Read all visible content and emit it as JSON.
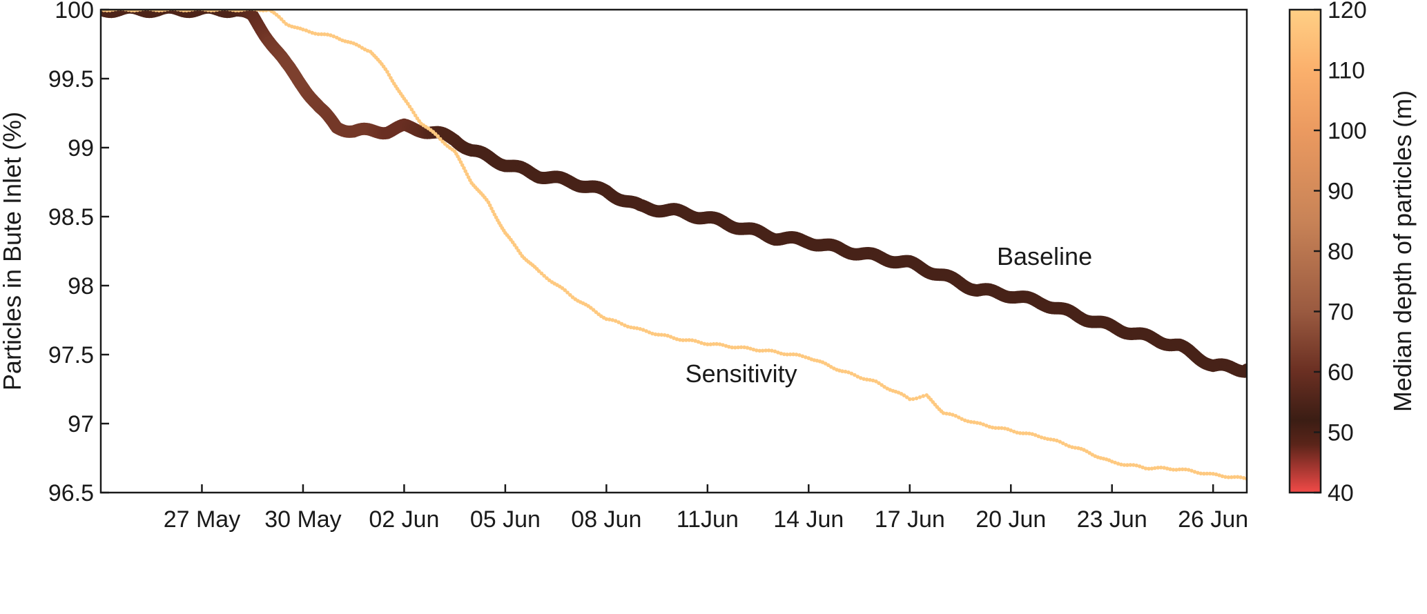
{
  "chart_data": {
    "type": "scatter",
    "ylabel": "Particles in Bute Inlet (%)",
    "colorbar_label": "Median depth of particles (m)",
    "ylim": [
      96.5,
      100
    ],
    "yticks": [
      "100",
      "99.5",
      "99",
      "98.5",
      "98",
      "97.5",
      "97",
      "96.5"
    ],
    "ytick_values": [
      100,
      99.5,
      99,
      98.5,
      98,
      97.5,
      97,
      96.5
    ],
    "xlim": [
      "2023-05-24",
      "2023-06-27"
    ],
    "xticks": [
      {
        "date": "2023-05-27",
        "label": "27 May"
      },
      {
        "date": "2023-05-30",
        "label": "30 May"
      },
      {
        "date": "2023-06-02",
        "label": "02 Jun"
      },
      {
        "date": "2023-06-05",
        "label": "05 Jun"
      },
      {
        "date": "2023-06-08",
        "label": "08 Jun"
      },
      {
        "date": "2023-06-11",
        "label": "11Jun"
      },
      {
        "date": "2023-06-14",
        "label": "14 Jun"
      },
      {
        "date": "2023-06-17",
        "label": "17 Jun"
      },
      {
        "date": "2023-06-20",
        "label": "20 Jun"
      },
      {
        "date": "2023-06-23",
        "label": "23 Jun"
      },
      {
        "date": "2023-06-26",
        "label": "26 Jun"
      }
    ],
    "colorbar": {
      "range": [
        40,
        120
      ],
      "ticks": [
        "120",
        "110",
        "100",
        "90",
        "80",
        "70",
        "60",
        "50",
        "40"
      ],
      "tick_values": [
        120,
        110,
        100,
        90,
        80,
        70,
        60,
        50,
        40
      ],
      "colors": [
        "#f24a48",
        "#5a2419",
        "#3b1d14",
        "#6a2f22",
        "#9a5a40",
        "#c88357",
        "#eb9a60",
        "#fbb06c",
        "#ffcf85"
      ],
      "color_stops": [
        40,
        48,
        52,
        60,
        70,
        85,
        100,
        110,
        120
      ]
    },
    "series": [
      {
        "name": "Baseline",
        "marker_color": "#4a2318",
        "points": [
          {
            "x": "2023-05-24",
            "y": 100.0,
            "depth": 55
          },
          {
            "x": "2023-05-25",
            "y": 100.0,
            "depth": 55
          },
          {
            "x": "2023-05-26",
            "y": 100.0,
            "depth": 55
          },
          {
            "x": "2023-05-27",
            "y": 100.0,
            "depth": 55
          },
          {
            "x": "2023-05-28",
            "y": 100.0,
            "depth": 55
          },
          {
            "x": "2023-05-28T12:00",
            "y": 99.95,
            "depth": 58
          },
          {
            "x": "2023-05-29",
            "y": 99.78,
            "depth": 62
          },
          {
            "x": "2023-05-29T12:00",
            "y": 99.6,
            "depth": 64
          },
          {
            "x": "2023-05-30",
            "y": 99.45,
            "depth": 64
          },
          {
            "x": "2023-05-30T12:00",
            "y": 99.28,
            "depth": 63
          },
          {
            "x": "2023-05-31",
            "y": 99.15,
            "depth": 62
          },
          {
            "x": "2023-05-31T12:00",
            "y": 99.12,
            "depth": 62
          },
          {
            "x": "2023-06-01",
            "y": 99.12,
            "depth": 62
          },
          {
            "x": "2023-06-01T12:00",
            "y": 99.12,
            "depth": 60
          },
          {
            "x": "2023-06-02",
            "y": 99.15,
            "depth": 60
          },
          {
            "x": "2023-06-02T12:00",
            "y": 99.13,
            "depth": 58
          },
          {
            "x": "2023-06-03",
            "y": 99.1,
            "depth": 55
          },
          {
            "x": "2023-06-03T12:00",
            "y": 99.06,
            "depth": 55
          },
          {
            "x": "2023-06-04",
            "y": 98.98,
            "depth": 54
          },
          {
            "x": "2023-06-05",
            "y": 98.88,
            "depth": 54
          },
          {
            "x": "2023-06-06",
            "y": 98.8,
            "depth": 54
          },
          {
            "x": "2023-06-07",
            "y": 98.75,
            "depth": 54
          },
          {
            "x": "2023-06-08",
            "y": 98.68,
            "depth": 54
          },
          {
            "x": "2023-06-09",
            "y": 98.57,
            "depth": 54
          },
          {
            "x": "2023-06-10",
            "y": 98.54,
            "depth": 54
          },
          {
            "x": "2023-06-11",
            "y": 98.49,
            "depth": 54
          },
          {
            "x": "2023-06-12",
            "y": 98.42,
            "depth": 54
          },
          {
            "x": "2023-06-13",
            "y": 98.35,
            "depth": 54
          },
          {
            "x": "2023-06-14",
            "y": 98.32,
            "depth": 54
          },
          {
            "x": "2023-06-15",
            "y": 98.26,
            "depth": 54
          },
          {
            "x": "2023-06-16",
            "y": 98.21,
            "depth": 54
          },
          {
            "x": "2023-06-17",
            "y": 98.16,
            "depth": 54
          },
          {
            "x": "2023-06-18",
            "y": 98.07,
            "depth": 54
          },
          {
            "x": "2023-06-19",
            "y": 97.97,
            "depth": 54
          },
          {
            "x": "2023-06-20",
            "y": 97.93,
            "depth": 54
          },
          {
            "x": "2023-06-21",
            "y": 97.87,
            "depth": 54
          },
          {
            "x": "2023-06-22",
            "y": 97.78,
            "depth": 54
          },
          {
            "x": "2023-06-23",
            "y": 97.7,
            "depth": 54
          },
          {
            "x": "2023-06-24",
            "y": 97.63,
            "depth": 54
          },
          {
            "x": "2023-06-25",
            "y": 97.56,
            "depth": 54
          },
          {
            "x": "2023-06-26",
            "y": 97.42,
            "depth": 54
          },
          {
            "x": "2023-06-27",
            "y": 97.39,
            "depth": 54
          }
        ]
      },
      {
        "name": "Sensitivity",
        "marker_color": "#fbc57f",
        "points": [
          {
            "x": "2023-05-24",
            "y": 100.0,
            "depth": 118
          },
          {
            "x": "2023-05-27",
            "y": 100.0,
            "depth": 118
          },
          {
            "x": "2023-05-29",
            "y": 100.0,
            "depth": 118
          },
          {
            "x": "2023-05-29T12:00",
            "y": 99.9,
            "depth": 118
          },
          {
            "x": "2023-05-30",
            "y": 99.85,
            "depth": 118
          },
          {
            "x": "2023-05-31",
            "y": 99.8,
            "depth": 118
          },
          {
            "x": "2023-06-01",
            "y": 99.7,
            "depth": 118
          },
          {
            "x": "2023-06-01T12:00",
            "y": 99.55,
            "depth": 118
          },
          {
            "x": "2023-06-02",
            "y": 99.35,
            "depth": 118
          },
          {
            "x": "2023-06-02T12:00",
            "y": 99.18,
            "depth": 118
          },
          {
            "x": "2023-06-03",
            "y": 99.08,
            "depth": 118
          },
          {
            "x": "2023-06-03T12:00",
            "y": 98.97,
            "depth": 118
          },
          {
            "x": "2023-06-04",
            "y": 98.75,
            "depth": 118
          },
          {
            "x": "2023-06-04T12:00",
            "y": 98.6,
            "depth": 118
          },
          {
            "x": "2023-06-05",
            "y": 98.38,
            "depth": 118
          },
          {
            "x": "2023-06-05T12:00",
            "y": 98.22,
            "depth": 118
          },
          {
            "x": "2023-06-06",
            "y": 98.1,
            "depth": 118
          },
          {
            "x": "2023-06-07",
            "y": 97.92,
            "depth": 118
          },
          {
            "x": "2023-06-08",
            "y": 97.76,
            "depth": 118
          },
          {
            "x": "2023-06-09",
            "y": 97.68,
            "depth": 118
          },
          {
            "x": "2023-06-10",
            "y": 97.62,
            "depth": 118
          },
          {
            "x": "2023-06-11",
            "y": 97.58,
            "depth": 118
          },
          {
            "x": "2023-06-12",
            "y": 97.55,
            "depth": 118
          },
          {
            "x": "2023-06-13",
            "y": 97.52,
            "depth": 118
          },
          {
            "x": "2023-06-14",
            "y": 97.48,
            "depth": 118
          },
          {
            "x": "2023-06-15",
            "y": 97.38,
            "depth": 118
          },
          {
            "x": "2023-06-16",
            "y": 97.3,
            "depth": 118
          },
          {
            "x": "2023-06-17",
            "y": 97.18,
            "depth": 118
          },
          {
            "x": "2023-06-17T12:00",
            "y": 97.2,
            "depth": 118
          },
          {
            "x": "2023-06-18",
            "y": 97.08,
            "depth": 118
          },
          {
            "x": "2023-06-19",
            "y": 97.0,
            "depth": 118
          },
          {
            "x": "2023-06-20",
            "y": 96.95,
            "depth": 118
          },
          {
            "x": "2023-06-21",
            "y": 96.9,
            "depth": 118
          },
          {
            "x": "2023-06-22",
            "y": 96.82,
            "depth": 118
          },
          {
            "x": "2023-06-23",
            "y": 96.72,
            "depth": 118
          },
          {
            "x": "2023-06-24",
            "y": 96.68,
            "depth": 118
          },
          {
            "x": "2023-06-25",
            "y": 96.67,
            "depth": 118
          },
          {
            "x": "2023-06-26",
            "y": 96.63,
            "depth": 118
          },
          {
            "x": "2023-06-27",
            "y": 96.6,
            "depth": 118
          }
        ]
      }
    ],
    "annotations": [
      {
        "text": "Baseline",
        "x": "2023-06-21",
        "y": 98.15
      },
      {
        "text": "Sensitivity",
        "x": "2023-06-12",
        "y": 97.3
      }
    ],
    "grid": false,
    "legend": "none"
  }
}
